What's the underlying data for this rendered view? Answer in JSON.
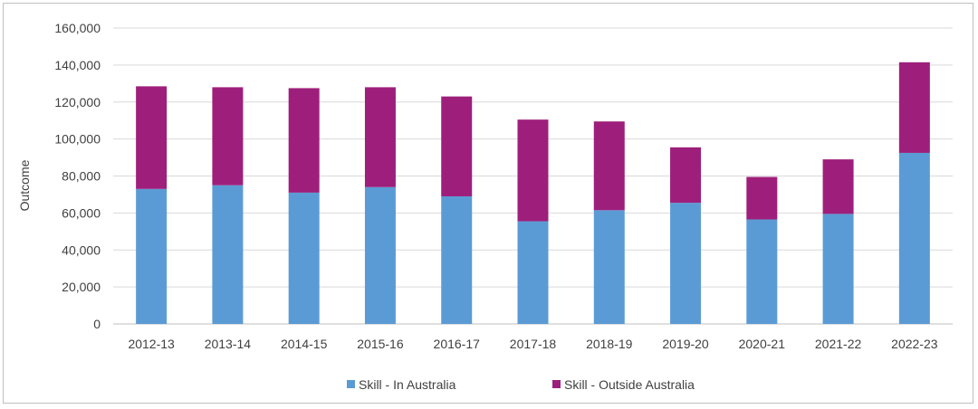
{
  "chart_data": {
    "type": "bar",
    "stacked": true,
    "categories": [
      "2012-13",
      "2013-14",
      "2014-15",
      "2015-16",
      "2016-17",
      "2017-18",
      "2018-19",
      "2019-20",
      "2020-21",
      "2021-22",
      "2022-23"
    ],
    "series": [
      {
        "name": "Skill - In Australia",
        "color": "#5b9bd5",
        "values": [
          73000,
          75000,
          71000,
          74000,
          69000,
          55500,
          61500,
          65500,
          56500,
          59500,
          92500
        ]
      },
      {
        "name": "Skill - Outside Australia",
        "color": "#9e1f7b",
        "values": [
          55500,
          53000,
          56500,
          54000,
          54000,
          55000,
          48000,
          30000,
          23000,
          29500,
          49000
        ]
      }
    ],
    "ylabel": "Outcome",
    "ylim": [
      0,
      160000
    ],
    "yticks": [
      0,
      20000,
      40000,
      60000,
      80000,
      100000,
      120000,
      140000,
      160000
    ],
    "ytick_labels": [
      "0",
      "20,000",
      "40,000",
      "60,000",
      "80,000",
      "100,000",
      "120,000",
      "140,000",
      "160,000"
    ],
    "grid": true,
    "legend_position": "bottom"
  }
}
